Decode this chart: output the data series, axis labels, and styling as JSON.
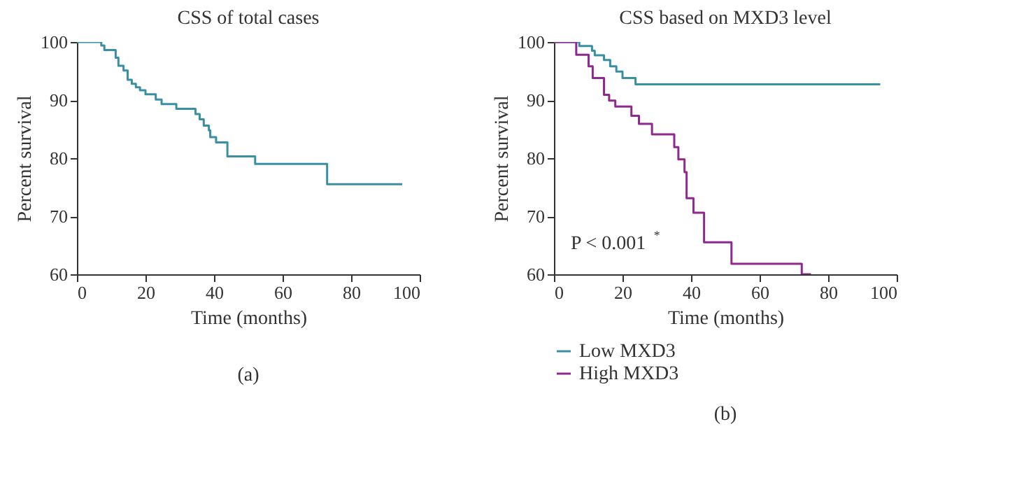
{
  "chart_data": [
    {
      "type": "step",
      "title": "CSS of total cases",
      "xlabel": "Time (months)",
      "ylabel": "Percent survival",
      "xlim": [
        0,
        100
      ],
      "xticks": [
        0,
        20,
        40,
        60,
        80,
        100
      ],
      "ylim": [
        60,
        100
      ],
      "yticks": [
        60,
        70,
        80,
        90,
        100
      ],
      "grid": false,
      "legend": false,
      "annotations": [
        "(a)"
      ],
      "series": [
        {
          "color": "#3a8fa3",
          "x": [
            0,
            7.1,
            8,
            11.3,
            12.1,
            13.6,
            14.8,
            16,
            17.2,
            18.4,
            20,
            23,
            24.7,
            29,
            34.6,
            35.8,
            37,
            38.5,
            38.9,
            40.6,
            43.9,
            52,
            73,
            94.9
          ],
          "values": [
            100,
            99.4,
            98.6,
            97.3,
            95.9,
            95.1,
            93.5,
            92.8,
            92.2,
            91.7,
            91,
            90.1,
            89.3,
            88.5,
            87.6,
            86.7,
            85.6,
            84.8,
            83.6,
            82.7,
            80.3,
            79,
            75.5,
            75.5
          ]
        }
      ]
    },
    {
      "type": "step",
      "title": "CSS based on MXD3 level",
      "xlabel": "Time (months)",
      "ylabel": "Percent survival",
      "xlim": [
        0,
        100
      ],
      "xticks": [
        0,
        20,
        40,
        60,
        80,
        100
      ],
      "ylim": [
        60,
        100
      ],
      "yticks": [
        60,
        70,
        80,
        90,
        100
      ],
      "grid": false,
      "legend": "bottom",
      "annotations": [
        "P < 0.001$^{*}$",
        "(b)"
      ],
      "series": [
        {
          "name": "Low MXD3",
          "color": "#3a8fa3",
          "x": [
            0,
            7.4,
            11.1,
            11.9,
            14.6,
            16.4,
            18.2,
            20,
            23.8,
            95.2
          ],
          "values": [
            100,
            99.3,
            98.5,
            97.7,
            96.9,
            95.8,
            94.9,
            93.8,
            92.7,
            92.7
          ]
        },
        {
          "name": "High MXD3",
          "color": "#8e2a8e",
          "x": [
            0,
            6.5,
            10.1,
            11.3,
            14.6,
            16.1,
            17.9,
            22.6,
            24.8,
            28.6,
            35.1,
            36.3,
            38.1,
            38.7,
            40.7,
            43.8,
            51.8,
            72.3,
            75
          ],
          "values": [
            100,
            97.8,
            95.8,
            93.8,
            90.9,
            89.9,
            88.9,
            87.3,
            85.9,
            84.1,
            81.9,
            79.8,
            77.6,
            73.1,
            70.6,
            65.5,
            61.8,
            60,
            60
          ]
        }
      ]
    }
  ]
}
